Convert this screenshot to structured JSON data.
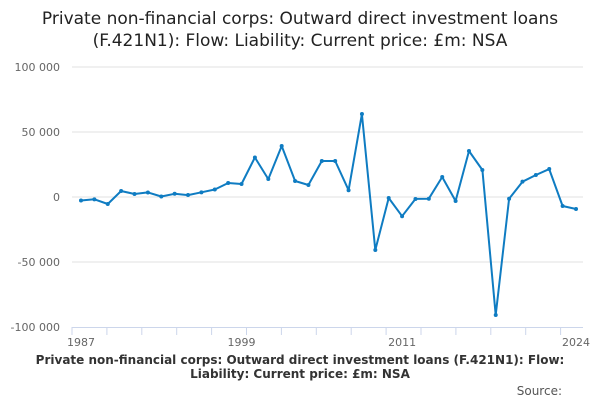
{
  "chart_data": {
    "type": "line",
    "title": "Private non-financial corps: Outward direct investment loans (F.421N1): Flow: Liability: Current price: £m: NSA",
    "caption": "Private non-financial corps: Outward direct investment loans (F.421N1): Flow: Liability: Current price: £m: NSA",
    "source_label": "Source:",
    "xlabel": "",
    "ylabel": "",
    "x_tick_labels": [
      "1987",
      "1999",
      "2011",
      "2024"
    ],
    "y_ticks": [
      100000,
      50000,
      0,
      -50000,
      -100000
    ],
    "y_tick_labels": [
      "100 000",
      "50 000",
      "0",
      "-50 000",
      "-100 000"
    ],
    "ylim": [
      -100000,
      100000
    ],
    "xlim": [
      1987,
      2024
    ],
    "grid": true,
    "line_color": "#0f7cc2",
    "x": [
      1987,
      1988,
      1989,
      1990,
      1991,
      1992,
      1993,
      1994,
      1995,
      1996,
      1997,
      1998,
      1999,
      2000,
      2001,
      2002,
      2003,
      2004,
      2005,
      2006,
      2007,
      2008,
      2009,
      2010,
      2011,
      2012,
      2013,
      2014,
      2015,
      2016,
      2017,
      2018,
      2019,
      2020,
      2021,
      2022,
      2023,
      2024
    ],
    "values": [
      -2700,
      -1800,
      -5400,
      4600,
      2300,
      3500,
      400,
      2500,
      1500,
      3600,
      5800,
      10800,
      10000,
      30400,
      13800,
      39200,
      12300,
      9200,
      27700,
      27700,
      5200,
      63800,
      -40800,
      -800,
      -14800,
      -1500,
      -1300,
      15400,
      -3100,
      35400,
      20800,
      -90800,
      -1300,
      11800,
      16900,
      21500,
      -6900,
      -9200
    ]
  }
}
